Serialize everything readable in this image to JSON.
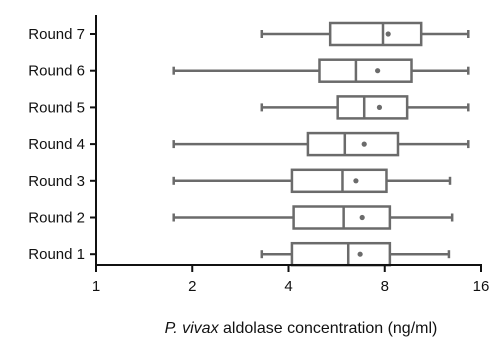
{
  "chart_data": {
    "type": "boxplot",
    "x_axis": {
      "label_italic": "P. vivax",
      "label_rest": " aldolase concentration (ng/ml)",
      "scale": "log2",
      "range": [
        1,
        16
      ],
      "ticks": [
        1,
        2,
        4,
        8,
        16
      ],
      "tick_labels": [
        "1",
        "2",
        "4",
        "8",
        "16"
      ]
    },
    "categories": [
      "Round 7",
      "Round 6",
      "Round 5",
      "Round 4",
      "Round 3",
      "Round 2",
      "Round 1"
    ],
    "boxes": [
      {
        "category": "Round 7",
        "min": 3.3,
        "q1": 5.4,
        "median": 7.9,
        "q3": 10.4,
        "max": 14.6,
        "mean": 8.2
      },
      {
        "category": "Round 6",
        "min": 1.75,
        "q1": 5.0,
        "median": 6.5,
        "q3": 9.7,
        "max": 14.6,
        "mean": 7.6
      },
      {
        "category": "Round 5",
        "min": 3.3,
        "q1": 5.7,
        "median": 6.9,
        "q3": 9.4,
        "max": 14.6,
        "mean": 7.7
      },
      {
        "category": "Round 4",
        "min": 1.75,
        "q1": 4.6,
        "median": 6.0,
        "q3": 8.8,
        "max": 14.6,
        "mean": 6.9
      },
      {
        "category": "Round 3",
        "min": 1.75,
        "q1": 4.1,
        "median": 5.9,
        "q3": 8.1,
        "max": 12.8,
        "mean": 6.5
      },
      {
        "category": "Round 2",
        "min": 1.75,
        "q1": 4.15,
        "median": 5.95,
        "q3": 8.3,
        "max": 13.0,
        "mean": 6.8
      },
      {
        "category": "Round 1",
        "min": 3.3,
        "q1": 4.1,
        "median": 6.15,
        "q3": 8.3,
        "max": 12.7,
        "mean": 6.7
      }
    ],
    "grid": false,
    "legend": "none",
    "colors": {
      "box": "#6b6b6b",
      "axis": "#111111"
    }
  }
}
